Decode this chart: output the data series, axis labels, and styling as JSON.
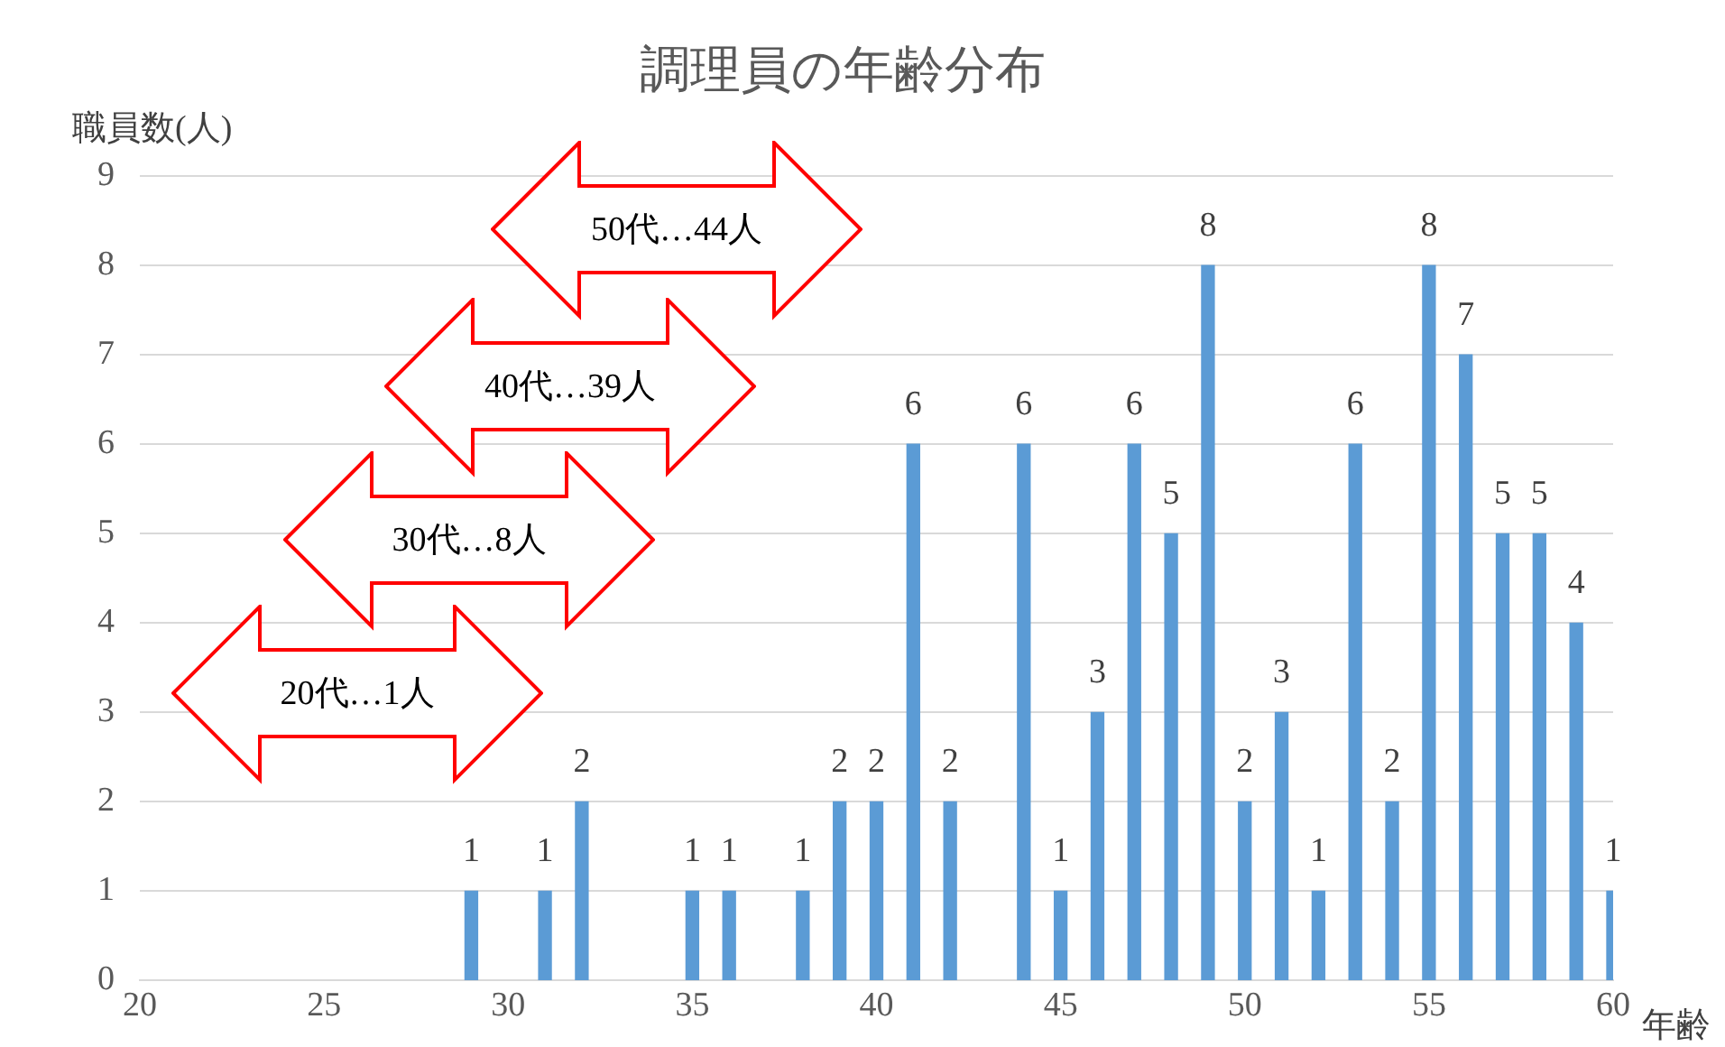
{
  "chart_data": {
    "type": "bar",
    "title": "調理員の年齢分布",
    "xlabel": "年齢",
    "ylabel": "職員数(人)",
    "x": [
      29,
      31,
      32,
      35,
      36,
      38,
      39,
      40,
      41,
      42,
      44,
      45,
      46,
      47,
      48,
      49,
      50,
      51,
      52,
      53,
      54,
      55,
      56,
      57,
      58,
      59,
      60
    ],
    "values": [
      1,
      1,
      2,
      1,
      1,
      1,
      2,
      2,
      6,
      2,
      6,
      1,
      3,
      6,
      5,
      8,
      2,
      3,
      1,
      6,
      2,
      8,
      7,
      5,
      5,
      4,
      1
    ],
    "color": "#5b9bd5",
    "xlim": [
      20,
      60
    ],
    "xticks": [
      20,
      25,
      30,
      35,
      40,
      45,
      50,
      55,
      60
    ],
    "ylim": [
      0,
      9
    ],
    "yticks": [
      0,
      1,
      2,
      3,
      4,
      5,
      6,
      7,
      8,
      9
    ],
    "grid": "y",
    "legend": false,
    "data_labels": true,
    "annotations": [
      "50代…44人",
      "40代…39人",
      "30代…8人",
      "20代…1人"
    ]
  }
}
